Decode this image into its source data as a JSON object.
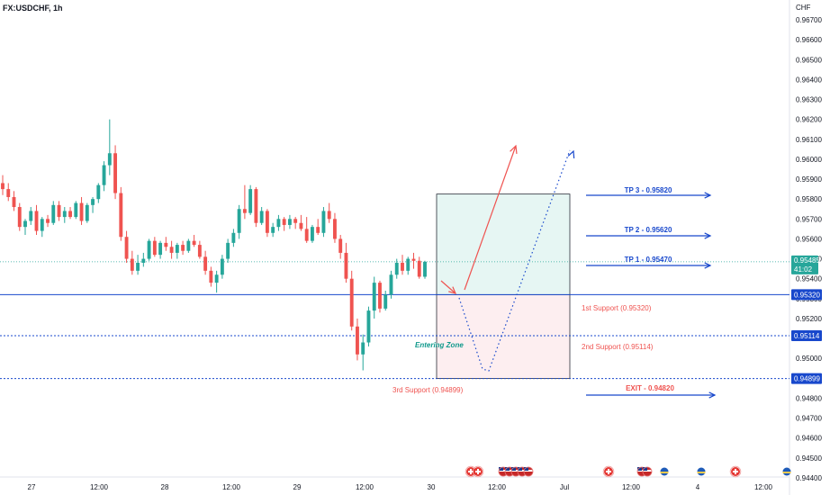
{
  "header": {
    "symbol_title": "FX:USDCHF, 1h"
  },
  "colors": {
    "up": "#26a69a",
    "down": "#ef5350",
    "blue": "#1848cc",
    "red": "#ef5350",
    "teal": "#10998c"
  },
  "chart_data": {
    "type": "candlestick",
    "currency_label": "CHF",
    "ylim": [
      0.944,
      0.9675
    ],
    "y_ticks": [
      "0.96700",
      "0.96600",
      "0.96500",
      "0.96400",
      "0.96300",
      "0.96200",
      "0.96100",
      "0.96000",
      "0.95900",
      "0.95800",
      "0.95700",
      "0.95600",
      "0.95500",
      "0.95400",
      "0.95300",
      "0.95200",
      "0.95100",
      "0.95000",
      "0.94900",
      "0.94800",
      "0.94700",
      "0.94600",
      "0.94500",
      "0.94400"
    ],
    "x_ticks": [
      "27",
      "12:00",
      "28",
      "12:00",
      "29",
      "12:00",
      "30",
      "12:00",
      "Jul",
      "12:00",
      "4",
      "12:00"
    ],
    "last_price": "0.95485",
    "countdown": "41:02",
    "levels": [
      {
        "label": "0.95320",
        "value": 0.9532
      },
      {
        "label": "0.95114",
        "value": 0.95114
      },
      {
        "label": "0.94899",
        "value": 0.94899
      }
    ],
    "annotations": {
      "tp3": "TP 3 - 0.95820",
      "tp2": "TP 2 - 0.95620",
      "tp1": "TP 1 - 0.95470",
      "support1": "1st Support (0.95320)",
      "support2": "2nd Support (0.95114)",
      "support3": "3rd Support (0.94899)",
      "entering_zone": "Entering Zone",
      "exit": "EXIT - 0.94820"
    },
    "candles": [
      [
        0.9588,
        0.9592,
        0.9582,
        0.9585
      ],
      [
        0.9585,
        0.9588,
        0.9579,
        0.9581
      ],
      [
        0.9581,
        0.9584,
        0.9574,
        0.9576
      ],
      [
        0.9576,
        0.9578,
        0.9564,
        0.9566
      ],
      [
        0.9566,
        0.957,
        0.9562,
        0.9569
      ],
      [
        0.9569,
        0.9576,
        0.9567,
        0.9574
      ],
      [
        0.9574,
        0.9577,
        0.9562,
        0.9564
      ],
      [
        0.9564,
        0.9571,
        0.9561,
        0.957
      ],
      [
        0.957,
        0.9572,
        0.9566,
        0.9568
      ],
      [
        0.9568,
        0.9579,
        0.9567,
        0.9577
      ],
      [
        0.9577,
        0.9579,
        0.9569,
        0.9571
      ],
      [
        0.9571,
        0.9576,
        0.9568,
        0.9574
      ],
      [
        0.9574,
        0.9576,
        0.957,
        0.9571
      ],
      [
        0.9571,
        0.9579,
        0.957,
        0.9578
      ],
      [
        0.9578,
        0.9581,
        0.9567,
        0.9569
      ],
      [
        0.9569,
        0.9578,
        0.9568,
        0.9577
      ],
      [
        0.9577,
        0.9581,
        0.9573,
        0.958
      ],
      [
        0.958,
        0.9588,
        0.9578,
        0.9587
      ],
      [
        0.9587,
        0.9599,
        0.9584,
        0.9597
      ],
      [
        0.9597,
        0.962,
        0.9592,
        0.9603
      ],
      [
        0.9603,
        0.9607,
        0.958,
        0.9583
      ],
      [
        0.9583,
        0.9586,
        0.9559,
        0.9561
      ],
      [
        0.9561,
        0.9564,
        0.9548,
        0.955
      ],
      [
        0.955,
        0.9554,
        0.9542,
        0.9544
      ],
      [
        0.9544,
        0.9552,
        0.9542,
        0.9548
      ],
      [
        0.9548,
        0.9553,
        0.9546,
        0.955
      ],
      [
        0.955,
        0.956,
        0.9549,
        0.9559
      ],
      [
        0.9559,
        0.9561,
        0.9551,
        0.9552
      ],
      [
        0.9552,
        0.9559,
        0.955,
        0.9558
      ],
      [
        0.9558,
        0.9561,
        0.9554,
        0.9556
      ],
      [
        0.9556,
        0.9559,
        0.955,
        0.9553
      ],
      [
        0.9553,
        0.9558,
        0.955,
        0.9557
      ],
      [
        0.9557,
        0.9559,
        0.9552,
        0.9554
      ],
      [
        0.9554,
        0.956,
        0.9553,
        0.9559
      ],
      [
        0.9559,
        0.9562,
        0.9556,
        0.9557
      ],
      [
        0.9557,
        0.9559,
        0.955,
        0.9551
      ],
      [
        0.9551,
        0.9554,
        0.9542,
        0.9544
      ],
      [
        0.9544,
        0.9546,
        0.9536,
        0.9538
      ],
      [
        0.9538,
        0.9544,
        0.9533,
        0.9542
      ],
      [
        0.9542,
        0.9552,
        0.954,
        0.955
      ],
      [
        0.955,
        0.956,
        0.9548,
        0.9558
      ],
      [
        0.9558,
        0.9565,
        0.9556,
        0.9563
      ],
      [
        0.9563,
        0.9577,
        0.956,
        0.9575
      ],
      [
        0.9575,
        0.9587,
        0.957,
        0.9573
      ],
      [
        0.9573,
        0.9587,
        0.9572,
        0.9585
      ],
      [
        0.9585,
        0.9586,
        0.9566,
        0.9568
      ],
      [
        0.9568,
        0.9576,
        0.9567,
        0.9574
      ],
      [
        0.9574,
        0.9575,
        0.9561,
        0.9563
      ],
      [
        0.9563,
        0.9568,
        0.9561,
        0.9566
      ],
      [
        0.9566,
        0.9572,
        0.9564,
        0.957
      ],
      [
        0.957,
        0.9571,
        0.9564,
        0.9567
      ],
      [
        0.9567,
        0.9572,
        0.9565,
        0.957
      ],
      [
        0.957,
        0.9571,
        0.9565,
        0.9568
      ],
      [
        0.9568,
        0.9572,
        0.9564,
        0.9565
      ],
      [
        0.9565,
        0.9571,
        0.9558,
        0.9559
      ],
      [
        0.9559,
        0.9567,
        0.9558,
        0.9566
      ],
      [
        0.9566,
        0.957,
        0.9562,
        0.9563
      ],
      [
        0.9563,
        0.9576,
        0.9561,
        0.9574
      ],
      [
        0.9574,
        0.9578,
        0.9568,
        0.957
      ],
      [
        0.957,
        0.9573,
        0.9558,
        0.956
      ],
      [
        0.956,
        0.9562,
        0.955,
        0.9553
      ],
      [
        0.9553,
        0.9558,
        0.9538,
        0.954
      ],
      [
        0.954,
        0.9544,
        0.9514,
        0.9516
      ],
      [
        0.9516,
        0.952,
        0.9499,
        0.9502
      ],
      [
        0.9502,
        0.9512,
        0.9494,
        0.9508
      ],
      [
        0.9508,
        0.9526,
        0.9506,
        0.9524
      ],
      [
        0.9524,
        0.9541,
        0.952,
        0.9538
      ],
      [
        0.9538,
        0.9539,
        0.9523,
        0.9525
      ],
      [
        0.9525,
        0.9534,
        0.9524,
        0.9532
      ],
      [
        0.9532,
        0.9544,
        0.953,
        0.9542
      ],
      [
        0.9542,
        0.955,
        0.954,
        0.9548
      ],
      [
        0.9548,
        0.9552,
        0.9542,
        0.9544
      ],
      [
        0.9544,
        0.9551,
        0.9542,
        0.955
      ],
      [
        0.955,
        0.9553,
        0.9545,
        0.9549
      ],
      [
        0.9549,
        0.9551,
        0.954,
        0.9541
      ],
      [
        0.9541,
        0.9549,
        0.954,
        0.95485
      ]
    ]
  }
}
